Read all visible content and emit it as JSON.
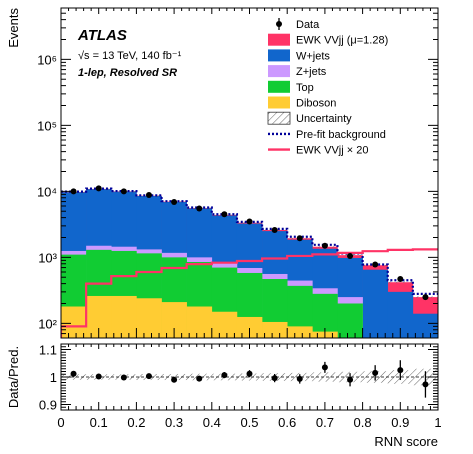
{
  "chart_data": [
    {
      "type": "stacked-histogram",
      "panel": "main",
      "experiment": "ATLAS",
      "energy_label": "√s = 13 TeV, 140 fb⁻¹",
      "region_label": "1-lep, Resolved SR",
      "ylabel": "Events",
      "ylog": true,
      "ylim": [
        60,
        6000000
      ],
      "yticks": [
        {
          "value": 100,
          "label": "10²"
        },
        {
          "value": 1000,
          "label": "10³"
        },
        {
          "value": 10000,
          "label": "10⁴"
        },
        {
          "value": 100000,
          "label": "10⁵"
        },
        {
          "value": 1000000,
          "label": "10⁶"
        }
      ],
      "xlim": [
        0,
        1
      ],
      "bin_edges": [
        0,
        0.0667,
        0.1333,
        0.2,
        0.2667,
        0.3333,
        0.4,
        0.4667,
        0.5333,
        0.6,
        0.6667,
        0.7333,
        0.8,
        0.8667,
        0.9333,
        1.0
      ],
      "legend_placement": "top-right",
      "stack_order_bottom_to_top": [
        "Diboson",
        "Top",
        "Z+jets",
        "W+jets",
        "EWK VVjj"
      ],
      "series": [
        {
          "name": "Diboson",
          "color": "#ffcc33",
          "values": [
            180,
            260,
            260,
            240,
            210,
            180,
            150,
            125,
            105,
            90,
            75,
            60,
            0,
            0,
            0
          ]
        },
        {
          "name": "Top",
          "color": "#11cc33",
          "values": [
            1100,
            1300,
            1250,
            1150,
            1000,
            850,
            700,
            580,
            470,
            370,
            280,
            200,
            0,
            0,
            0
          ]
        },
        {
          "name": "Z+jets",
          "color": "#cc99ff",
          "values": [
            1250,
            1500,
            1450,
            1320,
            1170,
            1000,
            830,
            690,
            560,
            445,
            340,
            250,
            0,
            0,
            0
          ]
        },
        {
          "name": "W+jets",
          "color": "#1166cc",
          "values": [
            9700,
            10800,
            9900,
            8500,
            6900,
            5500,
            4300,
            3250,
            2500,
            1850,
            1350,
            980,
            650,
            300,
            140
          ]
        },
        {
          "name": "EWK VVjj (μ=1.28)",
          "color": "#ff3366",
          "values": [
            9800,
            10900,
            10000,
            8600,
            7000,
            5600,
            4400,
            3350,
            2600,
            1950,
            1450,
            1080,
            760,
            420,
            250
          ]
        }
      ],
      "prefit_background": {
        "name": "Pre-fit background",
        "color": "#000099",
        "values": [
          9900,
          11000,
          10100,
          8700,
          7100,
          5700,
          4500,
          3450,
          2700,
          2050,
          1550,
          1150,
          780,
          450,
          280
        ]
      },
      "signal_x20": {
        "name": "EWK VVjj × 20",
        "color": "#ff3366",
        "values": [
          90,
          400,
          520,
          600,
          690,
          790,
          830,
          880,
          960,
          1050,
          1110,
          1170,
          1240,
          1300,
          1320
        ]
      },
      "data": {
        "name": "Data",
        "x": [
          0.0333,
          0.1,
          0.1667,
          0.2333,
          0.3,
          0.3667,
          0.4333,
          0.5,
          0.5667,
          0.6333,
          0.7,
          0.7667,
          0.8333,
          0.9,
          0.9667
        ],
        "values": [
          10000,
          11100,
          10000,
          8800,
          6900,
          5500,
          4500,
          3500,
          2600,
          1950,
          1500,
          1050,
          780,
          470,
          250
        ]
      },
      "legend": [
        {
          "label": "Data",
          "style": "marker",
          "color": "#000000"
        },
        {
          "label": "EWK VVjj (μ=1.28)",
          "style": "box",
          "color": "#ff3366"
        },
        {
          "label": "W+jets",
          "style": "box",
          "color": "#1166cc"
        },
        {
          "label": "Z+jets",
          "style": "box",
          "color": "#cc99ff"
        },
        {
          "label": "Top",
          "style": "box",
          "color": "#11cc33"
        },
        {
          "label": "Diboson",
          "style": "box",
          "color": "#ffcc33"
        },
        {
          "label": "Uncertainty",
          "style": "hatch",
          "color": "#555555"
        },
        {
          "label": "Pre-fit background",
          "style": "dotted",
          "color": "#000099"
        },
        {
          "label": "EWK VVjj × 20",
          "style": "line",
          "color": "#ff3366"
        }
      ]
    },
    {
      "type": "ratio",
      "panel": "ratio",
      "ylabel": "Data/Pred.",
      "xlabel": "RNN score",
      "ylim": [
        0.88,
        1.12
      ],
      "yticks": [
        {
          "value": 0.9,
          "label": "0.9"
        },
        {
          "value": 1.0,
          "label": "1"
        },
        {
          "value": 1.1,
          "label": "1.1"
        }
      ],
      "xticks": [
        {
          "value": 0,
          "label": "0"
        },
        {
          "value": 0.1,
          "label": "0.1"
        },
        {
          "value": 0.2,
          "label": "0.2"
        },
        {
          "value": 0.3,
          "label": "0.3"
        },
        {
          "value": 0.4,
          "label": "0.4"
        },
        {
          "value": 0.5,
          "label": "0.5"
        },
        {
          "value": 0.6,
          "label": "0.6"
        },
        {
          "value": 0.7,
          "label": "0.7"
        },
        {
          "value": 0.8,
          "label": "0.8"
        },
        {
          "value": 0.9,
          "label": "0.9"
        },
        {
          "value": 1,
          "label": "1"
        }
      ],
      "x": [
        0.0333,
        0.1,
        0.1667,
        0.2333,
        0.3,
        0.3667,
        0.4333,
        0.5,
        0.5667,
        0.6333,
        0.7,
        0.7667,
        0.8333,
        0.9,
        0.9667
      ],
      "values": [
        1.012,
        1.002,
        0.998,
        1.003,
        0.99,
        0.994,
        1.007,
        1.012,
        0.996,
        0.993,
        1.035,
        0.99,
        1.015,
        1.025,
        0.973
      ],
      "errors": [
        0.008,
        0.008,
        0.008,
        0.008,
        0.009,
        0.01,
        0.011,
        0.013,
        0.015,
        0.017,
        0.02,
        0.024,
        0.028,
        0.036,
        0.048
      ],
      "uncertainty_band": [
        0.01,
        0.01,
        0.01,
        0.011,
        0.011,
        0.012,
        0.012,
        0.013,
        0.014,
        0.015,
        0.017,
        0.019,
        0.021,
        0.025,
        0.03
      ]
    }
  ]
}
